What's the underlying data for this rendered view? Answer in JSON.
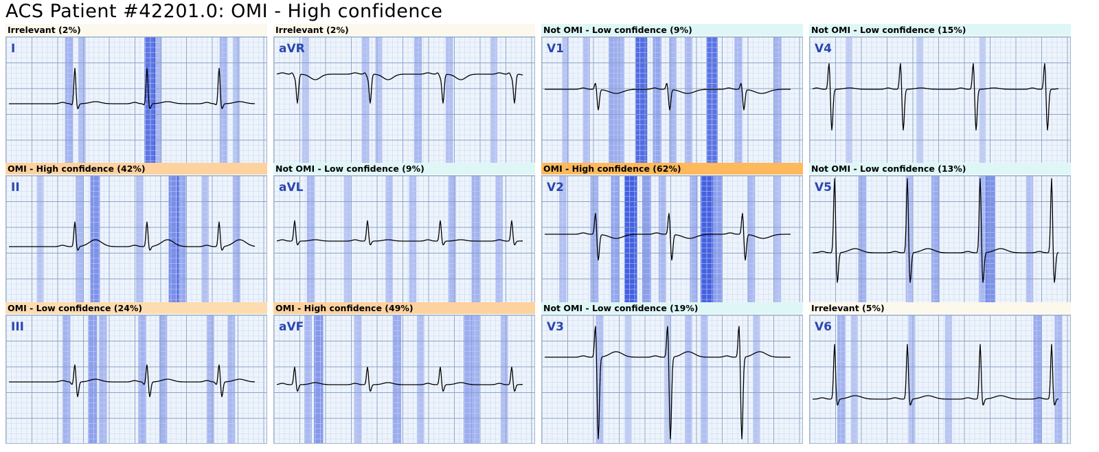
{
  "title": "ACS Patient #42201.0: OMI - High confidence",
  "colors": {
    "irrelevant": "#fdf8ec",
    "not_omi_low": "#dff6f6",
    "omi_low": "#fddcb0",
    "omi_high_light": "#fdd29e",
    "omi_high_strong": "#fdb95c",
    "heat": "#1f3fdc",
    "trace": "#000000",
    "minor_grid": "#c9d7ee",
    "major_grid": "#8aa2c6",
    "lead_label": "#2a46b0"
  },
  "chart_data": [
    {
      "type": "line",
      "lead": "I",
      "banner": "Irrelevant (2%)",
      "category": "irrelevant",
      "probability": 2,
      "morph": "I",
      "attention": [
        [
          0.24,
          0.35
        ],
        [
          0.29,
          0.25
        ],
        [
          0.55,
          0.85
        ],
        [
          0.58,
          0.3
        ],
        [
          0.83,
          0.3
        ],
        [
          0.88,
          0.2
        ]
      ]
    },
    {
      "type": "line",
      "lead": "aVR",
      "banner": "Irrelevant (2%)",
      "category": "irrelevant",
      "probability": 2,
      "morph": "aVR",
      "attention": [
        [
          0.12,
          0.2
        ],
        [
          0.35,
          0.25
        ],
        [
          0.4,
          0.2
        ],
        [
          0.55,
          0.3
        ],
        [
          0.67,
          0.25
        ],
        [
          0.84,
          0.2
        ]
      ]
    },
    {
      "type": "line",
      "lead": "V1",
      "banner": "Not OMI - Low confidence (9%)",
      "category": "not_omi_low",
      "probability": 9,
      "morph": "V1",
      "attention": [
        [
          0.09,
          0.2
        ],
        [
          0.17,
          0.25
        ],
        [
          0.27,
          0.4
        ],
        [
          0.3,
          0.3
        ],
        [
          0.38,
          0.9
        ],
        [
          0.44,
          0.45
        ],
        [
          0.5,
          0.3
        ],
        [
          0.56,
          0.3
        ],
        [
          0.65,
          0.85
        ],
        [
          0.75,
          0.3
        ],
        [
          0.9,
          0.35
        ]
      ]
    },
    {
      "type": "line",
      "lead": "V4",
      "banner": "Not OMI - Low confidence (15%)",
      "category": "not_omi_low",
      "probability": 15,
      "morph": "V4",
      "attention": [
        [
          0.15,
          0.15
        ],
        [
          0.42,
          0.15
        ],
        [
          0.66,
          0.15
        ]
      ]
    },
    {
      "type": "line",
      "lead": "II",
      "banner": "OMI - High confidence (42%)",
      "category": "omi_high_light",
      "probability": 42,
      "morph": "II",
      "attention": [
        [
          0.13,
          0.2
        ],
        [
          0.28,
          0.3
        ],
        [
          0.34,
          0.6
        ],
        [
          0.51,
          0.25
        ],
        [
          0.64,
          0.65
        ],
        [
          0.67,
          0.45
        ],
        [
          0.76,
          0.25
        ],
        [
          0.88,
          0.3
        ]
      ]
    },
    {
      "type": "line",
      "lead": "aVL",
      "banner": "Not OMI - Low confidence (9%)",
      "category": "not_omi_low",
      "probability": 9,
      "morph": "aVL",
      "attention": [
        [
          0.14,
          0.3
        ],
        [
          0.28,
          0.2
        ],
        [
          0.44,
          0.25
        ],
        [
          0.53,
          0.25
        ],
        [
          0.68,
          0.3
        ],
        [
          0.77,
          0.35
        ],
        [
          0.86,
          0.25
        ]
      ]
    },
    {
      "type": "line",
      "lead": "V2",
      "banner": "OMI - High confidence (62%)",
      "category": "omi_high_strong",
      "probability": 62,
      "morph": "V2",
      "attention": [
        [
          0.08,
          0.25
        ],
        [
          0.2,
          0.35
        ],
        [
          0.28,
          0.45
        ],
        [
          0.34,
          1.0
        ],
        [
          0.4,
          0.5
        ],
        [
          0.46,
          0.3
        ],
        [
          0.58,
          0.35
        ],
        [
          0.63,
          1.0
        ],
        [
          0.67,
          0.5
        ],
        [
          0.8,
          0.3
        ],
        [
          0.9,
          0.25
        ]
      ]
    },
    {
      "type": "line",
      "lead": "V5",
      "banner": "Not OMI - Low confidence (13%)",
      "category": "not_omi_low",
      "probability": 13,
      "morph": "V5",
      "attention": [
        [
          0.2,
          0.35
        ],
        [
          0.38,
          0.25
        ],
        [
          0.48,
          0.4
        ],
        [
          0.66,
          0.3
        ],
        [
          0.69,
          0.6
        ],
        [
          0.84,
          0.25
        ]
      ]
    },
    {
      "type": "line",
      "lead": "III",
      "banner": "OMI - Low confidence (24%)",
      "category": "omi_low",
      "probability": 24,
      "morph": "III",
      "attention": [
        [
          0.23,
          0.35
        ],
        [
          0.33,
          0.5
        ],
        [
          0.37,
          0.3
        ],
        [
          0.52,
          0.35
        ],
        [
          0.6,
          0.35
        ],
        [
          0.78,
          0.3
        ],
        [
          0.86,
          0.3
        ]
      ]
    },
    {
      "type": "line",
      "lead": "aVF",
      "banner": "OMI - High confidence (49%)",
      "category": "omi_high_light",
      "probability": 49,
      "morph": "aVF",
      "attention": [
        [
          0.13,
          0.3
        ],
        [
          0.17,
          0.55
        ],
        [
          0.32,
          0.25
        ],
        [
          0.47,
          0.4
        ],
        [
          0.56,
          0.25
        ],
        [
          0.74,
          0.4
        ],
        [
          0.77,
          0.35
        ],
        [
          0.88,
          0.25
        ]
      ]
    },
    {
      "type": "line",
      "lead": "V3",
      "banner": "Not OMI - Low confidence (19%)",
      "category": "not_omi_low",
      "probability": 19,
      "morph": "V3",
      "attention": [
        [
          0.22,
          0.25
        ],
        [
          0.33,
          0.15
        ],
        [
          0.48,
          0.15
        ],
        [
          0.56,
          0.25
        ],
        [
          0.62,
          0.25
        ],
        [
          0.82,
          0.2
        ]
      ]
    },
    {
      "type": "line",
      "lead": "V6",
      "banner": "Irrelevant (5%)",
      "category": "irrelevant",
      "probability": 5,
      "morph": "V6",
      "attention": [
        [
          0.12,
          0.35
        ],
        [
          0.17,
          0.2
        ],
        [
          0.39,
          0.2
        ],
        [
          0.53,
          0.2
        ],
        [
          0.87,
          0.4
        ],
        [
          0.95,
          0.3
        ]
      ]
    }
  ]
}
